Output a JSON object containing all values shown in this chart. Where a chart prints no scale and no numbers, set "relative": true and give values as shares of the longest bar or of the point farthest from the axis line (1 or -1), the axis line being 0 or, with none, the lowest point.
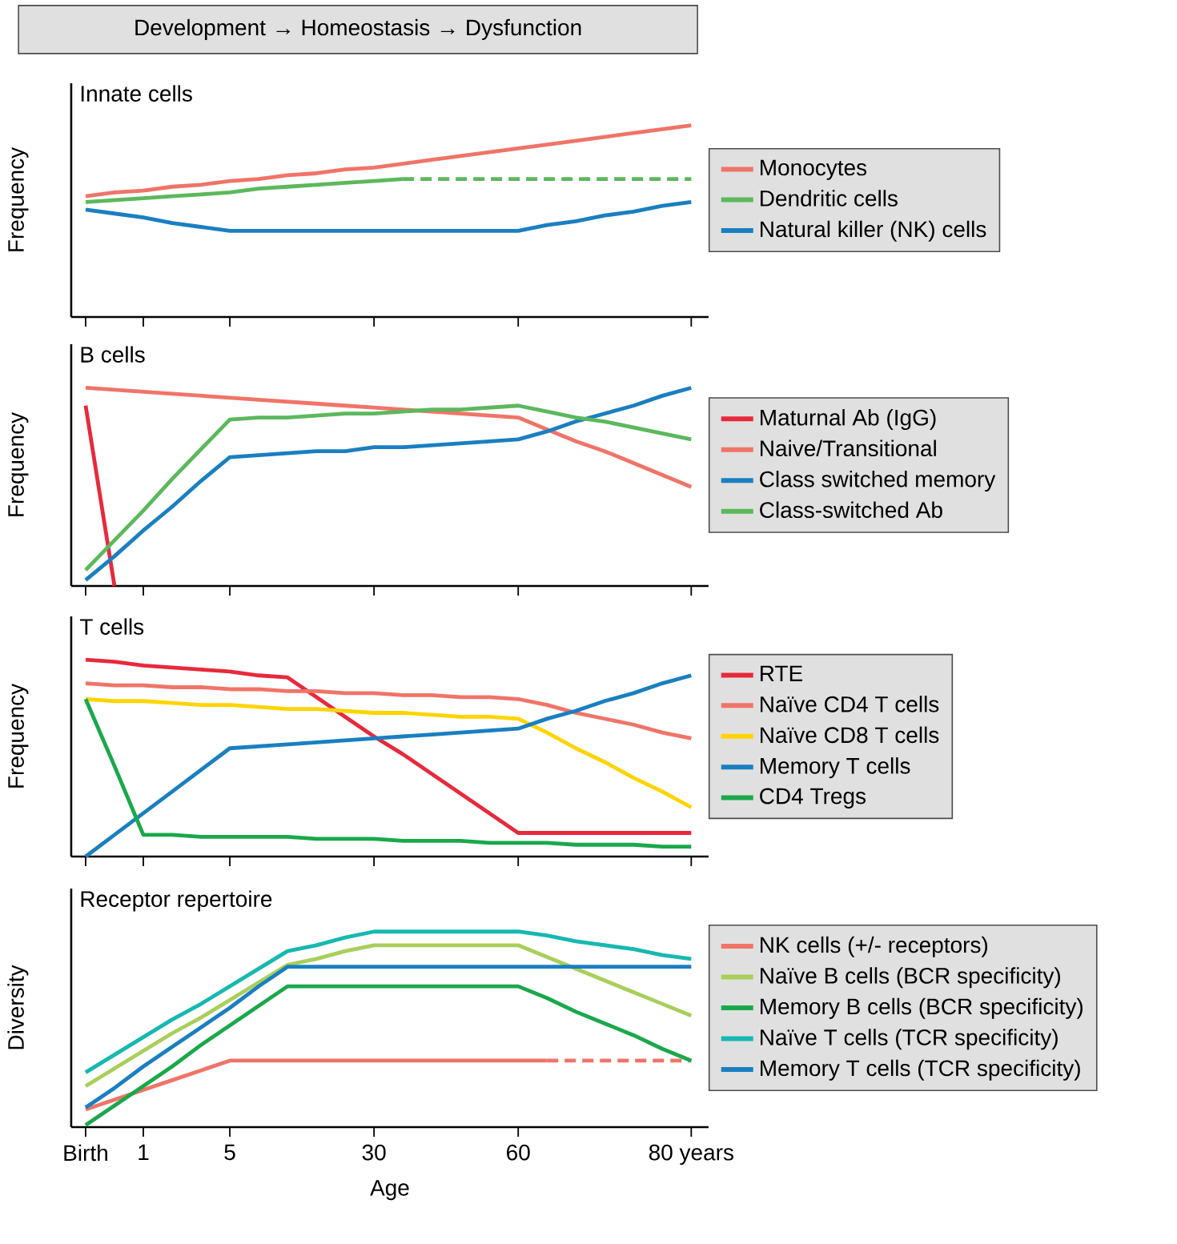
{
  "chart_data": [
    {
      "type": "line",
      "relative": true,
      "title": "Innate cells",
      "ylabel": "Frequency",
      "annotations": [
        "Development → Homeostasis → Dysfunction"
      ],
      "categories": [
        null,
        null,
        null,
        null,
        null,
        null,
        null,
        null,
        null,
        null,
        null,
        null,
        null,
        null,
        null,
        null,
        null,
        null,
        null,
        null,
        null,
        null
      ],
      "tick_labels": false,
      "legend": "right",
      "series": [
        {
          "name": "Monocytes",
          "color": "#f07468",
          "values": [
            0.63,
            0.65,
            0.66,
            0.68,
            0.69,
            0.71,
            0.72,
            0.74,
            0.75,
            0.77,
            0.78,
            0.8,
            0.82,
            0.84,
            0.86,
            0.88,
            0.9,
            0.92,
            0.94,
            0.96,
            0.98,
            1
          ]
        },
        {
          "name": "Dendritic cells",
          "color": "#5cb85c",
          "values": [
            0.6,
            0.61,
            0.62,
            0.63,
            0.64,
            0.65,
            0.67,
            0.68,
            0.69,
            0.7,
            0.71,
            0.72,
            null,
            null,
            null,
            null,
            null,
            null,
            null,
            null,
            null,
            null
          ]
        },
        {
          "color": "#5cb85c",
          "line_style": "dashed",
          "values": [
            null,
            null,
            null,
            null,
            null,
            null,
            null,
            null,
            null,
            null,
            null,
            0.72,
            0.72,
            0.72,
            0.72,
            0.72,
            0.72,
            0.72,
            0.72,
            0.72,
            0.72,
            0.72
          ]
        },
        {
          "name": "Natural killer (NK) cells",
          "color": "#1a7fc1",
          "values": [
            0.56,
            0.54,
            0.52,
            0.49,
            0.47,
            0.45,
            0.45,
            0.45,
            0.45,
            0.45,
            0.45,
            0.45,
            0.45,
            0.45,
            0.45,
            0.45,
            0.48,
            0.5,
            0.53,
            0.55,
            0.58,
            0.6
          ]
        }
      ]
    },
    {
      "type": "line",
      "relative": true,
      "title": "B cells",
      "ylabel": "Frequency",
      "categories": [
        null,
        null,
        null,
        null,
        null,
        null,
        null,
        null,
        null,
        null,
        null,
        null,
        null,
        null,
        null,
        null,
        null,
        null,
        null,
        null,
        null,
        null
      ],
      "tick_labels": false,
      "legend": "right",
      "series": [
        {
          "name": "Maturnal Ab (IgG)",
          "color": "#e8293c",
          "values": [
            0.91,
            0,
            null,
            null,
            null,
            null,
            null,
            null,
            null,
            null,
            null,
            null,
            null,
            null,
            null,
            null,
            null,
            null,
            null,
            null,
            null,
            null
          ]
        },
        {
          "name": "Naive/Transitional",
          "color": "#f07468",
          "values": [
            1,
            0.99,
            0.98,
            0.97,
            0.96,
            0.95,
            0.94,
            0.93,
            0.92,
            0.91,
            0.9,
            0.89,
            0.88,
            0.87,
            0.86,
            0.85,
            0.79,
            0.73,
            0.68,
            0.62,
            0.56,
            0.5
          ]
        },
        {
          "name": "Class switched memory",
          "color": "#1a7fc1",
          "values": [
            0.03,
            0.15,
            0.28,
            0.4,
            0.53,
            0.65,
            0.66,
            0.67,
            0.68,
            0.68,
            0.7,
            0.7,
            0.71,
            0.72,
            0.73,
            0.74,
            0.78,
            0.83,
            0.87,
            0.91,
            0.96,
            1
          ]
        },
        {
          "name": "Class-switched Ab",
          "color": "#5cb85c",
          "values": [
            0.08,
            0.23,
            0.38,
            0.54,
            0.69,
            0.84,
            0.85,
            0.85,
            0.86,
            0.87,
            0.87,
            0.88,
            0.89,
            0.89,
            0.9,
            0.91,
            0.88,
            0.85,
            0.83,
            0.8,
            0.77,
            0.74
          ]
        }
      ]
    },
    {
      "type": "line",
      "relative": true,
      "title": "T cells",
      "ylabel": "Frequency",
      "categories": [
        null,
        null,
        null,
        null,
        null,
        null,
        null,
        null,
        null,
        null,
        null,
        null,
        null,
        null,
        null,
        null,
        null,
        null,
        null,
        null,
        null,
        null
      ],
      "tick_labels": false,
      "legend": "right",
      "series": [
        {
          "name": "RTE",
          "color": "#e8293c",
          "values": [
            1,
            0.99,
            0.97,
            0.96,
            0.95,
            0.94,
            0.92,
            0.91,
            0.81,
            0.71,
            0.61,
            0.52,
            0.42,
            0.32,
            0.22,
            0.12,
            0.12,
            0.12,
            0.12,
            0.12,
            0.12,
            0.12
          ]
        },
        {
          "name": "Naïve CD4 T cells",
          "color": "#f07468",
          "values": [
            0.88,
            0.87,
            0.87,
            0.86,
            0.86,
            0.85,
            0.85,
            0.84,
            0.84,
            0.83,
            0.83,
            0.82,
            0.82,
            0.81,
            0.81,
            0.8,
            0.77,
            0.73,
            0.7,
            0.67,
            0.63,
            0.6
          ]
        },
        {
          "name": "Naïve CD8 T cells",
          "color": "#ffd400",
          "values": [
            0.8,
            0.79,
            0.79,
            0.78,
            0.77,
            0.77,
            0.76,
            0.75,
            0.75,
            0.74,
            0.73,
            0.73,
            0.72,
            0.71,
            0.71,
            0.7,
            0.63,
            0.55,
            0.48,
            0.4,
            0.33,
            0.25
          ]
        },
        {
          "name": "Memory T cells",
          "color": "#1a7fc1",
          "values": [
            0,
            0.11,
            0.22,
            0.33,
            0.44,
            0.55,
            0.56,
            0.57,
            0.58,
            0.59,
            0.6,
            0.61,
            0.62,
            0.63,
            0.64,
            0.65,
            0.7,
            0.74,
            0.79,
            0.83,
            0.88,
            0.92
          ]
        },
        {
          "name": "CD4 Tregs",
          "color": "#1aa84b",
          "values": [
            0.8,
            0.46,
            0.11,
            0.11,
            0.1,
            0.1,
            0.1,
            0.1,
            0.09,
            0.09,
            0.09,
            0.08,
            0.08,
            0.08,
            0.07,
            0.07,
            0.07,
            0.06,
            0.06,
            0.06,
            0.05,
            0.05
          ]
        }
      ]
    },
    {
      "type": "line",
      "relative": true,
      "title": "Receptor repertoire",
      "ylabel": "Diversity",
      "xlabel": "Age",
      "categories": [
        "Birth",
        null,
        "1",
        null,
        null,
        "5",
        null,
        null,
        null,
        null,
        "30",
        null,
        null,
        null,
        null,
        "60",
        null,
        null,
        null,
        null,
        null,
        "80 years"
      ],
      "legend": "right",
      "series": [
        {
          "name": "NK cells (+/- receptors)",
          "color": "#f07468",
          "values": [
            0.09,
            0.14,
            0.19,
            0.24,
            0.29,
            0.34,
            0.34,
            0.34,
            0.34,
            0.34,
            0.34,
            0.34,
            0.34,
            0.34,
            0.34,
            0.34,
            0.34,
            null,
            null,
            null,
            null,
            null
          ]
        },
        {
          "color": "#f07468",
          "line_style": "dashed",
          "values": [
            null,
            null,
            null,
            null,
            null,
            null,
            null,
            null,
            null,
            null,
            null,
            null,
            null,
            null,
            null,
            null,
            0.34,
            0.34,
            0.34,
            0.34,
            0.34,
            0.34
          ]
        },
        {
          "name": "Naïve B cells (BCR specificity)",
          "color": "#a8cf5a",
          "values": [
            0.21,
            0.3,
            0.39,
            0.48,
            0.56,
            0.65,
            0.74,
            0.83,
            0.86,
            0.9,
            0.93,
            0.93,
            0.93,
            0.93,
            0.93,
            0.93,
            0.87,
            0.81,
            0.75,
            0.69,
            0.63,
            0.57
          ]
        },
        {
          "name": "Memory B cells (BCR specificity)",
          "color": "#1aa84b",
          "values": [
            0.01,
            0.11,
            0.21,
            0.31,
            0.42,
            0.52,
            0.62,
            0.72,
            0.72,
            0.72,
            0.72,
            0.72,
            0.72,
            0.72,
            0.72,
            0.72,
            0.66,
            0.59,
            0.53,
            0.47,
            0.4,
            0.34
          ]
        },
        {
          "name": "Naïve T cells (TCR specificity)",
          "color": "#17b8b0",
          "values": [
            0.28,
            0.37,
            0.46,
            0.55,
            0.63,
            0.72,
            0.81,
            0.9,
            0.93,
            0.97,
            1,
            1,
            1,
            1,
            1,
            1,
            0.98,
            0.95,
            0.93,
            0.91,
            0.88,
            0.86
          ]
        },
        {
          "name": "Memory T cells (TCR specificity)",
          "color": "#1a7fc1",
          "values": [
            0.1,
            0.2,
            0.31,
            0.41,
            0.51,
            0.61,
            0.72,
            0.82,
            0.82,
            0.82,
            0.82,
            0.82,
            0.82,
            0.82,
            0.82,
            0.82,
            0.82,
            0.82,
            0.82,
            0.82,
            0.82,
            0.82
          ]
        }
      ]
    }
  ]
}
